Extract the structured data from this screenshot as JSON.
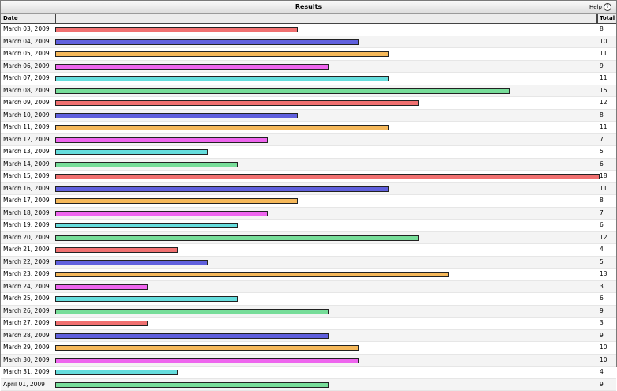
{
  "window": {
    "title": "Results",
    "help_label": "Help",
    "help_glyph": "?"
  },
  "columns": {
    "date": "Date",
    "total": "Total"
  },
  "palette": [
    "#f07070",
    "#6060dd",
    "#f5b85a",
    "#ee66ee",
    "#66dddd",
    "#77dd99"
  ],
  "chart_data": {
    "type": "bar",
    "orientation": "horizontal",
    "xlim": [
      0,
      18
    ],
    "categories": [
      "March 03, 2009",
      "March 04, 2009",
      "March 05, 2009",
      "March 06, 2009",
      "March 07, 2009",
      "March 08, 2009",
      "March 09, 2009",
      "March 10, 2009",
      "March 11, 2009",
      "March 12, 2009",
      "March 13, 2009",
      "March 14, 2009",
      "March 15, 2009",
      "March 16, 2009",
      "March 17, 2009",
      "March 18, 2009",
      "March 19, 2009",
      "March 20, 2009",
      "March 21, 2009",
      "March 22, 2009",
      "March 23, 2009",
      "March 24, 2009",
      "March 25, 2009",
      "March 26, 2009",
      "March 27, 2009",
      "March 28, 2009",
      "March 29, 2009",
      "March 30, 2009",
      "March 31, 2009",
      "April 01, 2009"
    ],
    "values": [
      8,
      10,
      11,
      9,
      11,
      15,
      12,
      8,
      11,
      7,
      5,
      6,
      18,
      11,
      8,
      7,
      6,
      12,
      4,
      5,
      13,
      3,
      6,
      9,
      3,
      9,
      10,
      10,
      4,
      9
    ]
  }
}
